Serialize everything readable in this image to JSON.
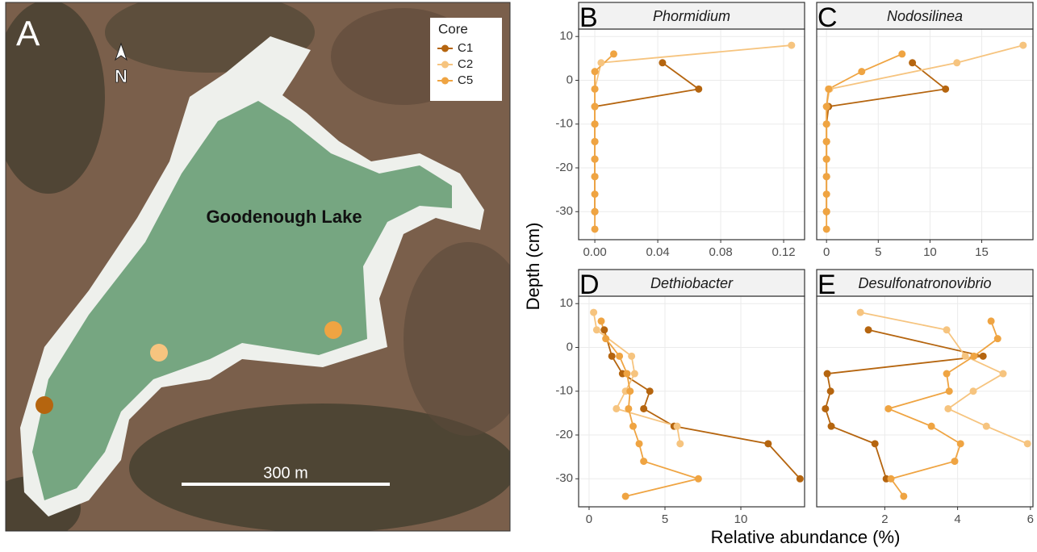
{
  "map": {
    "panel_label": "A",
    "north": "N",
    "lake_name": "Goodenough Lake",
    "scale_bar": "300 m",
    "legend_title": "Core"
  },
  "axis_labels": {
    "y": "Depth (cm)",
    "x": "Relative abundance (%)"
  },
  "chart_data": [
    {
      "type": "line",
      "panel_label": "B",
      "title": "Phormidium",
      "grid": true,
      "xlim": [
        -0.0103,
        0.1333
      ],
      "xticks": [
        {
          "value": 0,
          "label": "0.00"
        },
        0.04,
        0.08,
        0.12
      ],
      "ylim": [
        -36.4,
        11.7
      ],
      "yticks": [
        10,
        0,
        -10,
        -20,
        -30
      ],
      "series": [
        {
          "name": "C1",
          "color": "#b5650f",
          "x": [
            0.043,
            0.066,
            0,
            0,
            0,
            0,
            0,
            0
          ],
          "y": [
            4,
            -2,
            -6,
            -10,
            -14,
            -18,
            -22,
            -30
          ]
        },
        {
          "name": "C2",
          "color": "#f6c47f",
          "x": [
            0.125,
            0.004,
            0,
            0,
            0,
            0,
            0,
            0
          ],
          "y": [
            8,
            4,
            -2,
            -6,
            -10,
            -14,
            -18,
            -22
          ]
        },
        {
          "name": "C5",
          "color": "#efa442",
          "x": [
            0.012,
            0,
            0,
            0,
            0,
            0,
            0,
            0,
            0,
            0,
            0
          ],
          "y": [
            6,
            2,
            -2,
            -6,
            -10,
            -14,
            -18,
            -22,
            -26,
            -30,
            -34
          ]
        }
      ]
    },
    {
      "type": "line",
      "panel_label": "C",
      "title": "Nodosilinea",
      "grid": true,
      "xlim": [
        -0.95,
        19.95
      ],
      "xticks": [
        0,
        5,
        10,
        15
      ],
      "ylim": [
        -36.4,
        11.7
      ],
      "yticks": [
        10,
        0,
        -10,
        -20,
        -30
      ],
      "series": [
        {
          "name": "C1",
          "color": "#b5650f",
          "x": [
            8.3,
            11.5,
            0.2,
            0,
            0,
            0,
            0,
            0
          ],
          "y": [
            4,
            -2,
            -6,
            -10,
            -14,
            -18,
            -22,
            -30
          ]
        },
        {
          "name": "C2",
          "color": "#f6c47f",
          "x": [
            19,
            12.6,
            0.3,
            0,
            0,
            0,
            0,
            0
          ],
          "y": [
            8,
            4,
            -2,
            -6,
            -10,
            -14,
            -18,
            -22
          ]
        },
        {
          "name": "C5",
          "color": "#efa442",
          "x": [
            7.3,
            3.4,
            0.2,
            0,
            0,
            0,
            0,
            0,
            0,
            0,
            0
          ],
          "y": [
            6,
            2,
            -2,
            -6,
            -10,
            -14,
            -18,
            -22,
            -26,
            -30,
            -34
          ]
        }
      ]
    },
    {
      "type": "line",
      "panel_label": "D",
      "title": "Dethiobacter",
      "grid": true,
      "xlim": [
        -0.69,
        14.2
      ],
      "xticks": [
        0,
        5,
        10
      ],
      "ylim": [
        -36.4,
        11.7
      ],
      "yticks": [
        10,
        0,
        -10,
        -20,
        -30
      ],
      "series": [
        {
          "name": "C1",
          "color": "#b5650f",
          "x": [
            1.0,
            1.5,
            2.2,
            4.0,
            3.6,
            5.6,
            11.8,
            13.9
          ],
          "y": [
            4,
            -2,
            -6,
            -10,
            -14,
            -18,
            -22,
            -30
          ]
        },
        {
          "name": "C2",
          "color": "#f6c47f",
          "x": [
            0.3,
            0.5,
            2.8,
            3.0,
            2.4,
            1.8,
            5.8,
            6.0
          ],
          "y": [
            8,
            4,
            -2,
            -6,
            -10,
            -14,
            -18,
            -22
          ]
        },
        {
          "name": "C5",
          "color": "#efa442",
          "x": [
            0.8,
            1.1,
            2.0,
            2.5,
            2.7,
            2.6,
            2.9,
            3.3,
            3.6,
            7.2,
            2.4
          ],
          "y": [
            6,
            2,
            -2,
            -6,
            -10,
            -14,
            -18,
            -22,
            -26,
            -30,
            -34
          ]
        }
      ]
    },
    {
      "type": "line",
      "panel_label": "E",
      "title": "Desulfonatronovibrio",
      "grid": true,
      "xlim": [
        0.13,
        6.07
      ],
      "xticks": [
        2,
        4,
        6
      ],
      "ylim": [
        -36.4,
        11.7
      ],
      "yticks": [
        10,
        0,
        -10,
        -20,
        -30
      ],
      "series": [
        {
          "name": "C1",
          "color": "#b5650f",
          "x": [
            1.55,
            4.7,
            0.42,
            0.51,
            0.37,
            0.53,
            1.73,
            2.04
          ],
          "y": [
            4,
            -2,
            -6,
            -10,
            -14,
            -18,
            -22,
            -30
          ]
        },
        {
          "name": "C2",
          "color": "#f6c47f",
          "x": [
            1.33,
            3.7,
            4.21,
            5.25,
            4.43,
            3.74,
            4.79,
            5.92
          ],
          "y": [
            8,
            4,
            -2,
            -6,
            -10,
            -14,
            -18,
            -22
          ]
        },
        {
          "name": "C5",
          "color": "#efa442",
          "x": [
            4.92,
            5.1,
            4.45,
            3.7,
            3.77,
            2.1,
            3.28,
            4.08,
            3.92,
            2.17,
            2.52
          ],
          "y": [
            6,
            2,
            -2,
            -6,
            -10,
            -14,
            -18,
            -22,
            -26,
            -30,
            -34
          ]
        }
      ]
    }
  ]
}
